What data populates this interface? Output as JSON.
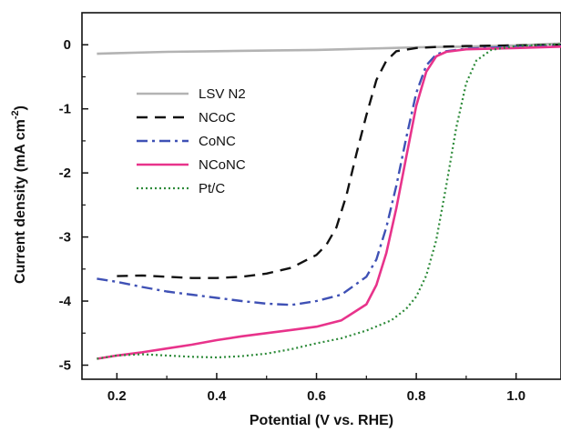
{
  "chart_data": {
    "type": "line",
    "xlabel": "Potential (V  vs. RHE)",
    "ylabel": "Current density (mA cm",
    "ylabel_sup": "-2",
    "ylabel_close": ")",
    "xlim": [
      0.13,
      1.09
    ],
    "ylim": [
      -5.22,
      0.5
    ],
    "x_ticks": [
      0.2,
      0.4,
      0.6,
      0.8,
      1.0
    ],
    "x_tick_labels": [
      "0.2",
      "0.4",
      "0.6",
      "0.8",
      "1.0"
    ],
    "y_ticks": [
      0,
      -1,
      -2,
      -3,
      -4,
      -5
    ],
    "y_tick_labels": [
      "0",
      "-1",
      "-2",
      "-3",
      "-4",
      "-5"
    ],
    "grid": false,
    "legend_position": "upper-left",
    "series": [
      {
        "name": "LSV N2",
        "color": "#b3b3b3",
        "dash": "solid",
        "x": [
          0.16,
          0.2,
          0.3,
          0.4,
          0.5,
          0.6,
          0.7,
          0.75,
          0.8,
          0.9,
          1.0,
          1.09
        ],
        "y": [
          -0.14,
          -0.13,
          -0.11,
          -0.1,
          -0.09,
          -0.08,
          -0.06,
          -0.05,
          -0.04,
          -0.03,
          -0.01,
          0.02
        ]
      },
      {
        "name": "NCoC",
        "color": "#111111",
        "dash": "dashed",
        "x": [
          0.2,
          0.25,
          0.3,
          0.35,
          0.4,
          0.45,
          0.5,
          0.55,
          0.6,
          0.62,
          0.64,
          0.66,
          0.68,
          0.7,
          0.72,
          0.74,
          0.76,
          0.8,
          0.85,
          0.9,
          1.0,
          1.09
        ],
        "y": [
          -3.61,
          -3.6,
          -3.62,
          -3.64,
          -3.64,
          -3.62,
          -3.57,
          -3.48,
          -3.28,
          -3.12,
          -2.85,
          -2.35,
          -1.7,
          -1.1,
          -0.55,
          -0.25,
          -0.1,
          -0.05,
          -0.03,
          -0.02,
          -0.01,
          0.0
        ]
      },
      {
        "name": "CoNC",
        "color": "#3f51b5",
        "dash": "dashdot",
        "x": [
          0.16,
          0.2,
          0.25,
          0.3,
          0.35,
          0.4,
          0.45,
          0.5,
          0.55,
          0.6,
          0.65,
          0.7,
          0.72,
          0.74,
          0.76,
          0.78,
          0.8,
          0.82,
          0.84,
          0.86,
          0.9,
          1.0,
          1.09
        ],
        "y": [
          -3.65,
          -3.7,
          -3.78,
          -3.85,
          -3.9,
          -3.95,
          -4.0,
          -4.04,
          -4.06,
          -4.0,
          -3.9,
          -3.62,
          -3.35,
          -2.85,
          -2.2,
          -1.45,
          -0.75,
          -0.32,
          -0.15,
          -0.1,
          -0.06,
          -0.03,
          -0.02
        ]
      },
      {
        "name": "NCoNC",
        "color": "#e8338b",
        "dash": "solid",
        "x": [
          0.16,
          0.2,
          0.25,
          0.3,
          0.35,
          0.4,
          0.45,
          0.5,
          0.55,
          0.6,
          0.65,
          0.7,
          0.72,
          0.74,
          0.76,
          0.78,
          0.8,
          0.82,
          0.84,
          0.86,
          0.9,
          1.0,
          1.09
        ],
        "y": [
          -4.9,
          -4.85,
          -4.8,
          -4.74,
          -4.68,
          -4.61,
          -4.55,
          -4.5,
          -4.45,
          -4.4,
          -4.3,
          -4.05,
          -3.75,
          -3.25,
          -2.55,
          -1.75,
          -0.95,
          -0.42,
          -0.18,
          -0.11,
          -0.07,
          -0.05,
          -0.03
        ]
      },
      {
        "name": "Pt/C",
        "color": "#2e8b3a",
        "dash": "dotted",
        "x": [
          0.16,
          0.2,
          0.25,
          0.3,
          0.35,
          0.4,
          0.45,
          0.5,
          0.55,
          0.6,
          0.65,
          0.7,
          0.75,
          0.78,
          0.8,
          0.82,
          0.84,
          0.86,
          0.88,
          0.9,
          0.92,
          0.95,
          1.0,
          1.09
        ],
        "y": [
          -4.9,
          -4.85,
          -4.83,
          -4.85,
          -4.87,
          -4.88,
          -4.86,
          -4.82,
          -4.75,
          -4.66,
          -4.58,
          -4.46,
          -4.3,
          -4.12,
          -3.93,
          -3.6,
          -3.05,
          -2.2,
          -1.3,
          -0.6,
          -0.25,
          -0.08,
          -0.02,
          0.01
        ]
      }
    ]
  }
}
